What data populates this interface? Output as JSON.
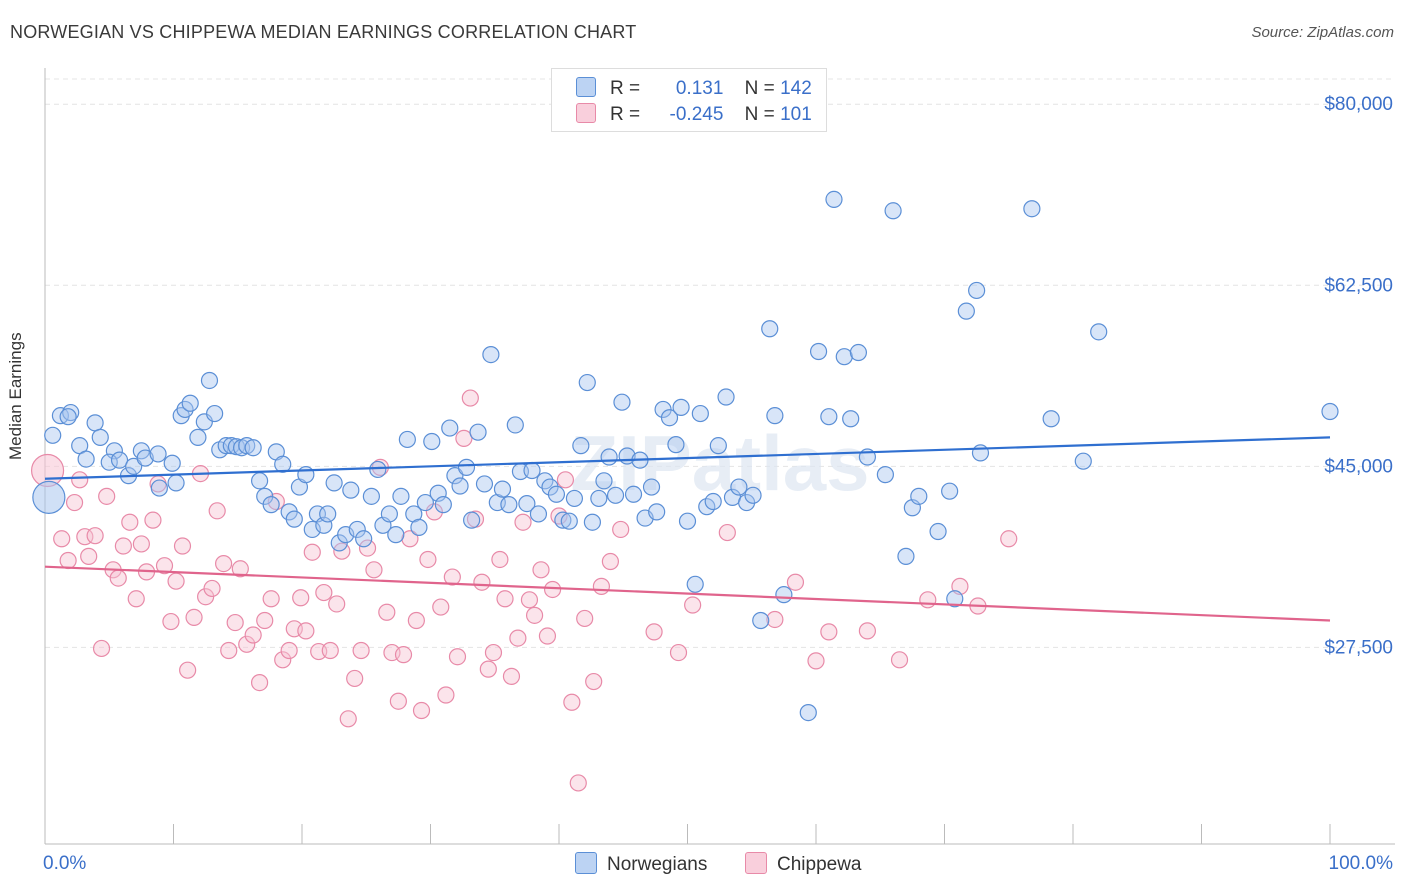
{
  "title": "NORWEGIAN VS CHIPPEWA MEDIAN EARNINGS CORRELATION CHART",
  "source": "Source: ZipAtlas.com",
  "watermark": "ZIPatlas",
  "colors": {
    "blue_fill": "#a9c6ef",
    "blue_stroke": "#5b8fd6",
    "blue_line": "#2f6fd0",
    "pink_fill": "#f7c3d3",
    "pink_stroke": "#e88aa8",
    "pink_line": "#e0648c",
    "axis_label": "#3a6fc9"
  },
  "legend": {
    "rows": [
      {
        "r_label": "R =",
        "r_value": "0.131",
        "n_label": "N =",
        "n_value": "142"
      },
      {
        "r_label": "R =",
        "r_value": "-0.245",
        "n_label": "N =",
        "n_value": "101"
      }
    ]
  },
  "chart_data": {
    "type": "scatter",
    "title": "NORWEGIAN VS CHIPPEWA MEDIAN EARNINGS CORRELATION CHART",
    "xlabel": "",
    "ylabel": "Median Earnings",
    "xlim": [
      0,
      100
    ],
    "ylim": [
      8500,
      83500
    ],
    "x_tick_labels": [
      "0.0%",
      "100.0%"
    ],
    "y_ticks": [
      27500,
      45000,
      62500,
      80000
    ],
    "y_tick_labels": [
      "$27,500",
      "$45,000",
      "$62,500",
      "$80,000"
    ],
    "grid": true,
    "legend_position": "top-center",
    "series": [
      {
        "name": "Norwegians",
        "trend": {
          "x": [
            0,
            100
          ],
          "y": [
            43800,
            47800
          ]
        },
        "points": [
          [
            0.3,
            42000
          ],
          [
            0.6,
            48000
          ],
          [
            1.2,
            49900
          ],
          [
            2.0,
            50200
          ],
          [
            1.8,
            49800
          ],
          [
            2.7,
            47000
          ],
          [
            3.2,
            45700
          ],
          [
            3.9,
            49200
          ],
          [
            4.3,
            47800
          ],
          [
            5.4,
            46500
          ],
          [
            5.0,
            45400
          ],
          [
            5.8,
            45600
          ],
          [
            6.5,
            44100
          ],
          [
            6.9,
            45000
          ],
          [
            7.5,
            46500
          ],
          [
            7.8,
            45800
          ],
          [
            8.8,
            46200
          ],
          [
            8.9,
            42900
          ],
          [
            9.9,
            45300
          ],
          [
            10.2,
            43400
          ],
          [
            10.6,
            49900
          ],
          [
            10.9,
            50500
          ],
          [
            11.3,
            51100
          ],
          [
            11.9,
            47800
          ],
          [
            12.4,
            49300
          ],
          [
            12.8,
            53300
          ],
          [
            13.2,
            50100
          ],
          [
            13.6,
            46600
          ],
          [
            14.1,
            47000
          ],
          [
            14.5,
            47000
          ],
          [
            14.9,
            46900
          ],
          [
            15.3,
            46800
          ],
          [
            15.7,
            47000
          ],
          [
            16.2,
            46800
          ],
          [
            16.7,
            43600
          ],
          [
            17.1,
            42100
          ],
          [
            17.6,
            41300
          ],
          [
            18.0,
            46400
          ],
          [
            18.5,
            45200
          ],
          [
            19.0,
            40600
          ],
          [
            19.4,
            39900
          ],
          [
            19.8,
            43000
          ],
          [
            20.3,
            44200
          ],
          [
            20.8,
            38900
          ],
          [
            21.2,
            40400
          ],
          [
            21.7,
            39300
          ],
          [
            22.0,
            40400
          ],
          [
            22.5,
            43400
          ],
          [
            22.9,
            37600
          ],
          [
            23.4,
            38400
          ],
          [
            23.8,
            42700
          ],
          [
            24.3,
            38900
          ],
          [
            24.8,
            38000
          ],
          [
            25.4,
            42100
          ],
          [
            25.9,
            44700
          ],
          [
            26.3,
            39300
          ],
          [
            26.8,
            40400
          ],
          [
            27.3,
            38400
          ],
          [
            27.7,
            42100
          ],
          [
            28.2,
            47600
          ],
          [
            28.7,
            40400
          ],
          [
            29.1,
            39100
          ],
          [
            29.6,
            41500
          ],
          [
            30.1,
            47400
          ],
          [
            30.6,
            42400
          ],
          [
            31.0,
            41300
          ],
          [
            31.5,
            48700
          ],
          [
            31.9,
            44100
          ],
          [
            32.3,
            43100
          ],
          [
            32.8,
            44900
          ],
          [
            33.2,
            39800
          ],
          [
            33.7,
            48300
          ],
          [
            34.2,
            43300
          ],
          [
            34.7,
            55800
          ],
          [
            35.2,
            41500
          ],
          [
            35.6,
            42800
          ],
          [
            36.1,
            41300
          ],
          [
            36.6,
            49000
          ],
          [
            37.0,
            44500
          ],
          [
            37.5,
            41400
          ],
          [
            37.9,
            44600
          ],
          [
            38.4,
            40400
          ],
          [
            38.9,
            43600
          ],
          [
            39.3,
            43000
          ],
          [
            39.8,
            42300
          ],
          [
            40.3,
            39800
          ],
          [
            40.8,
            39700
          ],
          [
            41.2,
            41900
          ],
          [
            41.7,
            47000
          ],
          [
            42.2,
            53100
          ],
          [
            42.6,
            39600
          ],
          [
            43.1,
            41900
          ],
          [
            43.5,
            43600
          ],
          [
            43.9,
            45900
          ],
          [
            44.4,
            42200
          ],
          [
            44.9,
            51200
          ],
          [
            45.3,
            46000
          ],
          [
            45.8,
            42300
          ],
          [
            46.3,
            45600
          ],
          [
            46.7,
            40000
          ],
          [
            47.2,
            43000
          ],
          [
            47.6,
            40600
          ],
          [
            48.1,
            50500
          ],
          [
            48.6,
            49700
          ],
          [
            49.1,
            47100
          ],
          [
            49.5,
            50700
          ],
          [
            50.0,
            39700
          ],
          [
            50.6,
            33600
          ],
          [
            51.0,
            50100
          ],
          [
            51.5,
            41100
          ],
          [
            52.0,
            41600
          ],
          [
            52.4,
            47000
          ],
          [
            53.0,
            51700
          ],
          [
            53.5,
            42000
          ],
          [
            54.0,
            43000
          ],
          [
            54.6,
            41500
          ],
          [
            55.1,
            42200
          ],
          [
            55.7,
            30100
          ],
          [
            56.4,
            58300
          ],
          [
            56.8,
            49900
          ],
          [
            57.5,
            32600
          ],
          [
            59.4,
            21200
          ],
          [
            60.2,
            56100
          ],
          [
            61.0,
            49800
          ],
          [
            61.4,
            70800
          ],
          [
            62.2,
            55600
          ],
          [
            62.7,
            49600
          ],
          [
            63.3,
            56000
          ],
          [
            64.0,
            45900
          ],
          [
            65.4,
            44200
          ],
          [
            66.0,
            69700
          ],
          [
            67.0,
            36300
          ],
          [
            67.5,
            41000
          ],
          [
            68.0,
            42100
          ],
          [
            69.5,
            38700
          ],
          [
            70.4,
            42600
          ],
          [
            70.8,
            32200
          ],
          [
            71.7,
            60000
          ],
          [
            72.5,
            62000
          ],
          [
            72.8,
            46300
          ],
          [
            76.8,
            69900
          ],
          [
            78.3,
            49600
          ],
          [
            80.8,
            45500
          ],
          [
            82.0,
            58000
          ],
          [
            100,
            50300
          ]
        ]
      },
      {
        "name": "Chippewa",
        "trend": {
          "x": [
            0,
            100
          ],
          "y": [
            35300,
            30100
          ]
        },
        "points": [
          [
            0.2,
            44600
          ],
          [
            1.3,
            38000
          ],
          [
            1.8,
            35900
          ],
          [
            2.3,
            41500
          ],
          [
            2.7,
            43700
          ],
          [
            3.1,
            38200
          ],
          [
            3.4,
            36300
          ],
          [
            3.9,
            38300
          ],
          [
            4.4,
            27400
          ],
          [
            4.8,
            42100
          ],
          [
            5.3,
            35000
          ],
          [
            5.7,
            34200
          ],
          [
            6.1,
            37300
          ],
          [
            6.6,
            39600
          ],
          [
            7.1,
            32200
          ],
          [
            7.5,
            37500
          ],
          [
            7.9,
            34800
          ],
          [
            8.4,
            39800
          ],
          [
            8.8,
            43300
          ],
          [
            9.3,
            35400
          ],
          [
            9.8,
            30000
          ],
          [
            10.2,
            33900
          ],
          [
            10.7,
            37300
          ],
          [
            11.1,
            25300
          ],
          [
            11.6,
            30400
          ],
          [
            12.1,
            44300
          ],
          [
            12.5,
            32400
          ],
          [
            13.0,
            33200
          ],
          [
            13.4,
            40700
          ],
          [
            13.9,
            35600
          ],
          [
            14.3,
            27200
          ],
          [
            14.8,
            29900
          ],
          [
            15.2,
            35100
          ],
          [
            15.7,
            27800
          ],
          [
            16.2,
            28700
          ],
          [
            16.7,
            24100
          ],
          [
            17.1,
            30100
          ],
          [
            17.6,
            32200
          ],
          [
            18.0,
            41600
          ],
          [
            18.5,
            26300
          ],
          [
            19.0,
            27200
          ],
          [
            19.4,
            29300
          ],
          [
            19.9,
            32300
          ],
          [
            20.3,
            29100
          ],
          [
            20.8,
            36700
          ],
          [
            21.3,
            27100
          ],
          [
            21.7,
            32800
          ],
          [
            22.2,
            27200
          ],
          [
            22.7,
            31700
          ],
          [
            23.1,
            36800
          ],
          [
            23.6,
            20600
          ],
          [
            24.1,
            24500
          ],
          [
            24.6,
            27200
          ],
          [
            25.1,
            37100
          ],
          [
            25.6,
            35000
          ],
          [
            26.1,
            44900
          ],
          [
            26.6,
            30900
          ],
          [
            27.0,
            27000
          ],
          [
            27.5,
            22300
          ],
          [
            27.9,
            26800
          ],
          [
            28.4,
            38000
          ],
          [
            28.9,
            30100
          ],
          [
            29.3,
            21400
          ],
          [
            29.8,
            36000
          ],
          [
            30.3,
            40600
          ],
          [
            30.8,
            31400
          ],
          [
            31.2,
            22900
          ],
          [
            31.7,
            34300
          ],
          [
            32.1,
            26600
          ],
          [
            32.6,
            47700
          ],
          [
            33.1,
            51600
          ],
          [
            33.5,
            39900
          ],
          [
            34.0,
            33800
          ],
          [
            34.5,
            25400
          ],
          [
            34.9,
            27000
          ],
          [
            35.4,
            36000
          ],
          [
            35.8,
            32200
          ],
          [
            36.3,
            24700
          ],
          [
            36.8,
            28400
          ],
          [
            37.2,
            39600
          ],
          [
            37.7,
            32100
          ],
          [
            38.1,
            30600
          ],
          [
            38.6,
            35000
          ],
          [
            39.1,
            28600
          ],
          [
            39.5,
            33100
          ],
          [
            40.0,
            40200
          ],
          [
            40.5,
            43700
          ],
          [
            41.0,
            22200
          ],
          [
            41.5,
            14400
          ],
          [
            42.0,
            30300
          ],
          [
            42.7,
            24200
          ],
          [
            43.3,
            33400
          ],
          [
            44.0,
            35800
          ],
          [
            44.8,
            38900
          ],
          [
            47.4,
            29000
          ],
          [
            49.3,
            27000
          ],
          [
            50.4,
            31600
          ],
          [
            53.1,
            38600
          ],
          [
            56.8,
            30200
          ],
          [
            58.4,
            33800
          ],
          [
            60.0,
            26200
          ],
          [
            61.0,
            29000
          ],
          [
            64.0,
            29100
          ],
          [
            66.5,
            26300
          ],
          [
            68.7,
            32100
          ],
          [
            71.2,
            33400
          ],
          [
            72.6,
            31500
          ],
          [
            75.0,
            38000
          ]
        ]
      }
    ]
  },
  "bottom_legend": {
    "items": [
      {
        "label": "Norwegians"
      },
      {
        "label": "Chippewa"
      }
    ]
  }
}
